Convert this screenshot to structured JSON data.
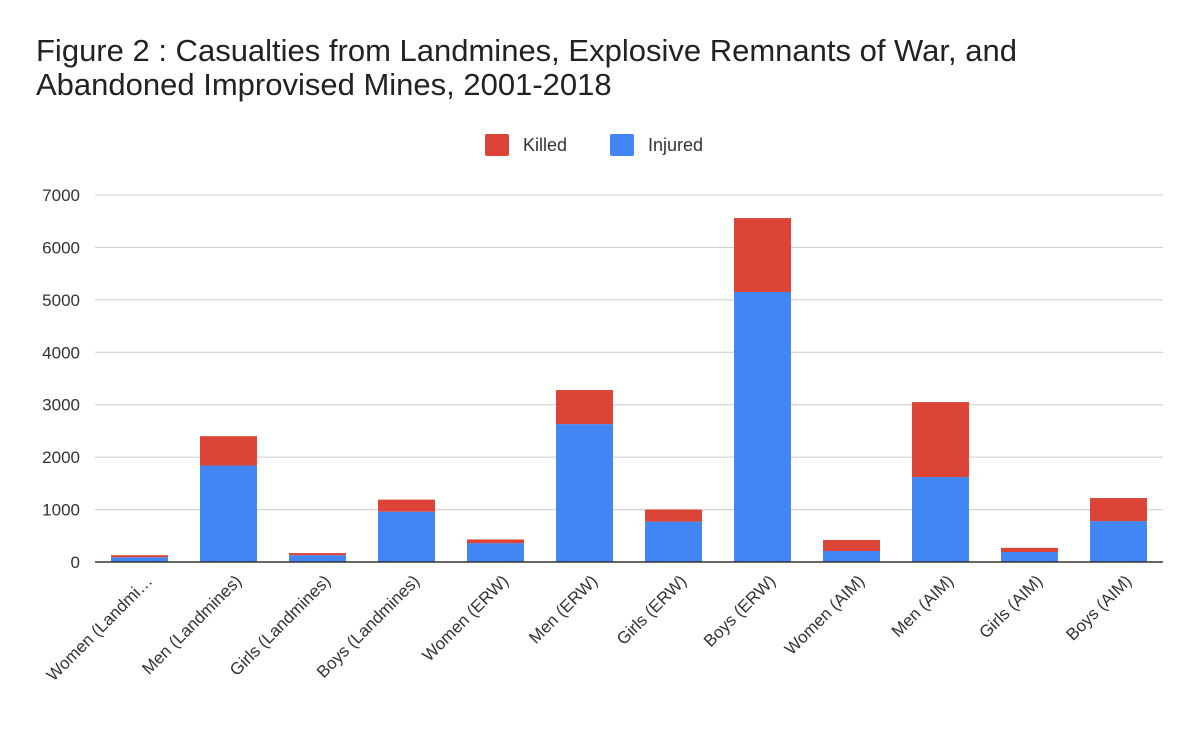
{
  "chart_data": {
    "type": "bar",
    "stacked": true,
    "title": "Figure 2 : Casualties from Landmines, Explosive Remnants of War, and Abandoned Improvised Mines, 2001-2018",
    "xlabel": "",
    "ylabel": "",
    "legend_position": "top-center",
    "grid": true,
    "ylim": [
      0,
      7000
    ],
    "yticks": [
      "0",
      "1000",
      "2000",
      "3000",
      "4000",
      "5000",
      "6000",
      "7000"
    ],
    "categories": [
      "Women (Landmi…",
      "Men (Landmines)",
      "Girls (Landmines)",
      "Boys (Landmines)",
      "Women (ERW)",
      "Men (ERW)",
      "Girls (ERW)",
      "Boys (ERW)",
      "Women (AIM)",
      "Men (AIM)",
      "Girls (AIM)",
      "Boys (AIM)"
    ],
    "series": [
      {
        "name": "Injured",
        "color": "#4285f4",
        "values": [
          90,
          1840,
          130,
          960,
          360,
          2630,
          770,
          5150,
          210,
          1620,
          190,
          780
        ]
      },
      {
        "name": "Killed",
        "color": "#db4437",
        "values": [
          40,
          560,
          40,
          230,
          70,
          650,
          230,
          1410,
          210,
          1430,
          80,
          440
        ]
      }
    ],
    "legend_order": [
      "Killed",
      "Injured"
    ]
  }
}
